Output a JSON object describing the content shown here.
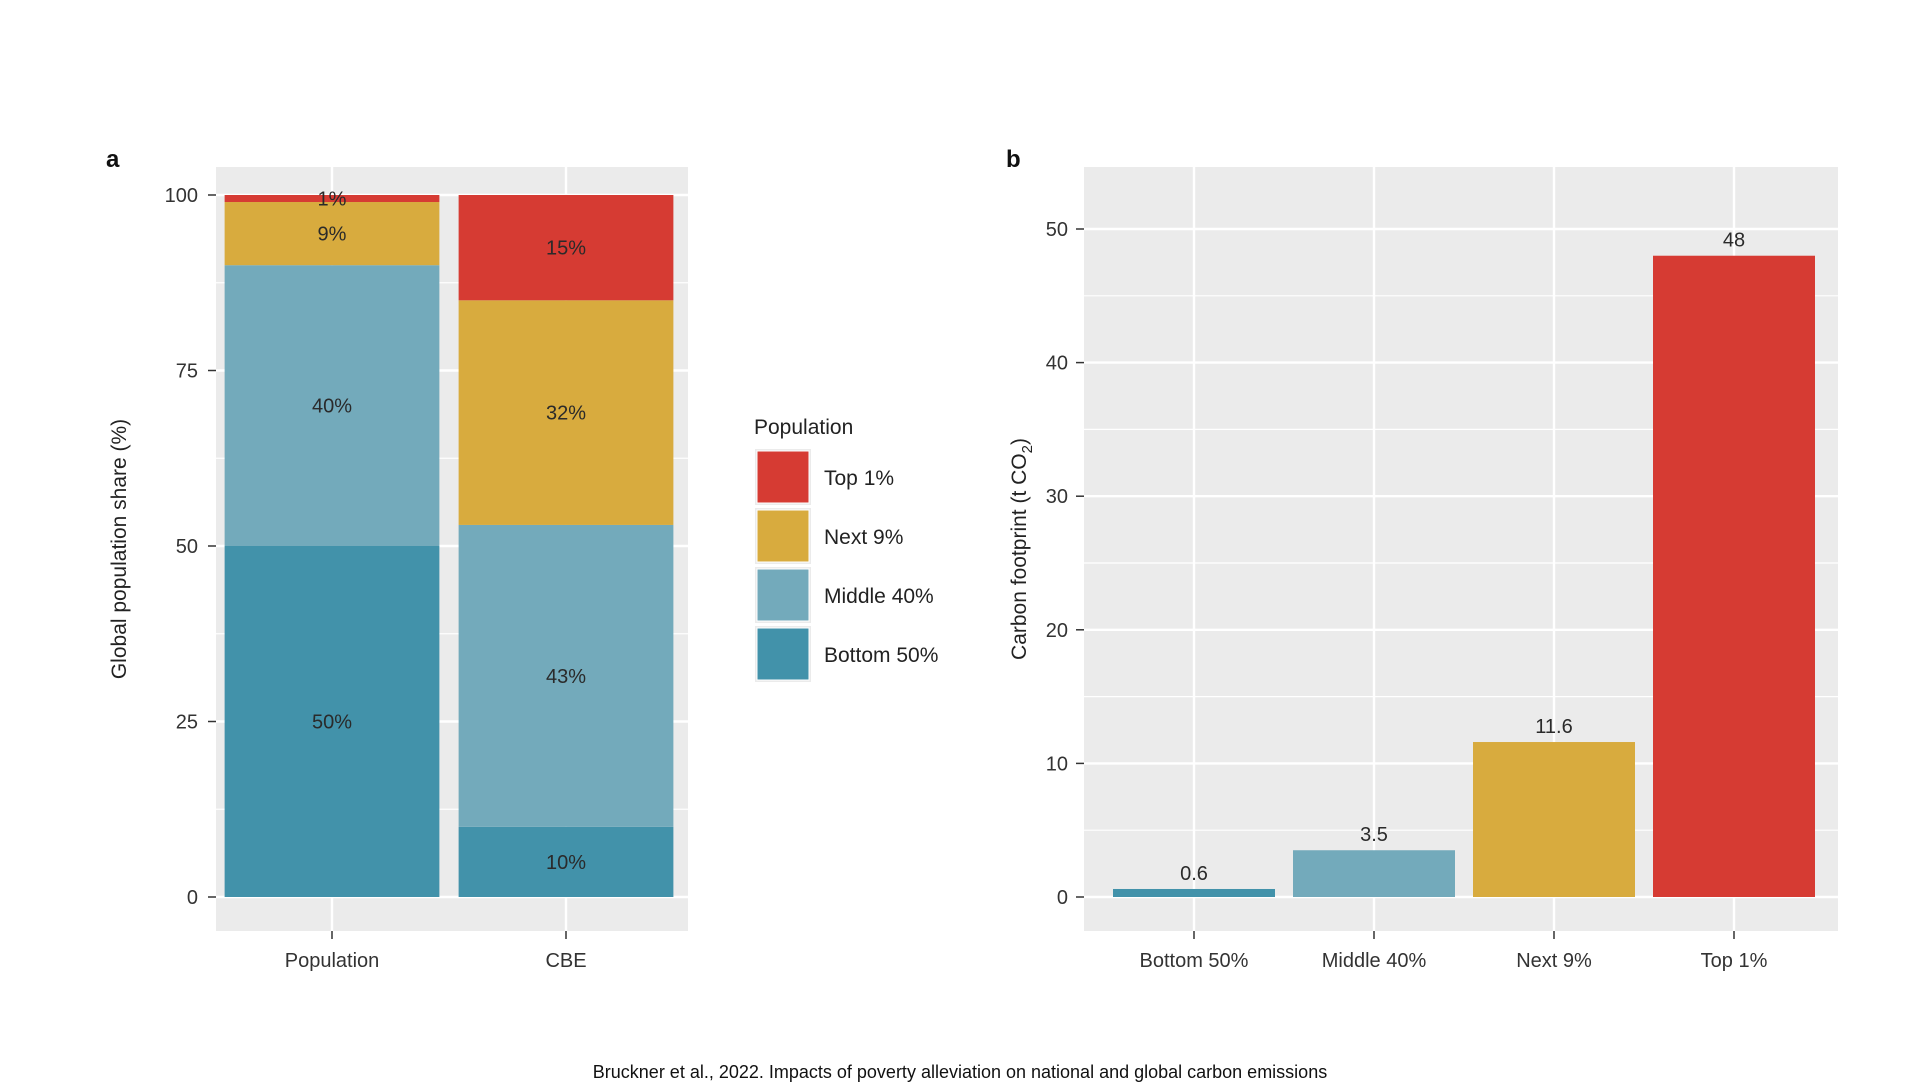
{
  "colors": {
    "top1": "#d63b33",
    "next9": "#d8ab3e",
    "middle40": "#73aabb",
    "bottom50": "#4292aa",
    "panel_bg": "#ebebeb",
    "grid": "#ffffff"
  },
  "chart_data": [
    {
      "panel": "a",
      "type": "bar",
      "stacked": true,
      "categories": [
        "Population",
        "CBE"
      ],
      "series": [
        {
          "name": "Bottom 50%",
          "color": "#4292aa",
          "values": [
            50,
            10
          ],
          "labels": [
            "50%",
            "10%"
          ]
        },
        {
          "name": "Middle 40%",
          "color": "#73aabb",
          "values": [
            40,
            43
          ],
          "labels": [
            "40%",
            "43%"
          ]
        },
        {
          "name": "Next 9%",
          "color": "#d8ab3e",
          "values": [
            9,
            32
          ],
          "labels": [
            "9%",
            "32%"
          ]
        },
        {
          "name": "Top 1%",
          "color": "#d63b33",
          "values": [
            1,
            15
          ],
          "labels": [
            "1%",
            "15%"
          ]
        }
      ],
      "ylabel": "Global population share (%)",
      "ylim": [
        0,
        105
      ],
      "yticks": [
        0,
        25,
        50,
        75,
        100
      ],
      "grid": true,
      "legend": {
        "title": "Population",
        "placement": "right",
        "entries": [
          "Top 1%",
          "Next 9%",
          "Middle 40%",
          "Bottom 50%"
        ]
      }
    },
    {
      "panel": "b",
      "type": "bar",
      "categories": [
        "Bottom 50%",
        "Middle 40%",
        "Next 9%",
        "Top 1%"
      ],
      "values": [
        0.6,
        3.5,
        11.6,
        48
      ],
      "value_labels": [
        "0.6",
        "3.5",
        "11.6",
        "48"
      ],
      "colors": [
        "#4292aa",
        "#73aabb",
        "#d8ab3e",
        "#d63b33"
      ],
      "ylabel_main": "Carbon footprint (t CO",
      "ylabel_sub": "2",
      "ylabel_end": ")",
      "ylim": [
        0,
        55
      ],
      "yticks": [
        0,
        10,
        20,
        30,
        40,
        50
      ],
      "grid": true
    }
  ],
  "caption": "Bruckner et al., 2022. Impacts of poverty alleviation on national and global carbon emissions"
}
